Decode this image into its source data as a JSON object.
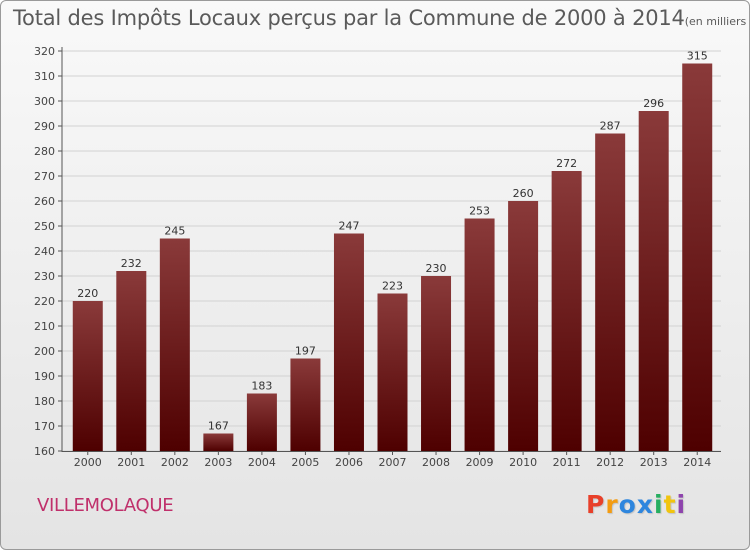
{
  "header": {
    "title": "Total des Impôts Locaux perçus par la Commune de 2000 à 2014",
    "subtitle": "(en milliers d'€)"
  },
  "commune_name": "VILLEMOLAQUE",
  "brand": {
    "letters": [
      "P",
      "r",
      "o",
      "x",
      "i",
      "t",
      "i"
    ],
    "colors": [
      "#e8402a",
      "#f39c12",
      "#2e86de",
      "#2e86de",
      "#27ae60",
      "#f1c40f",
      "#8e44ad"
    ]
  },
  "colors": {
    "bar_top": "#8a3a3a",
    "bar_bottom": "#4e0000",
    "title": "#5a5a5a",
    "commune": "#c0306b"
  },
  "chart_data": {
    "type": "bar",
    "title": "Total des Impôts Locaux perçus par la Commune de 2000 à 2014",
    "xlabel": "",
    "ylabel": "en milliers d'€",
    "categories": [
      "2000",
      "2001",
      "2002",
      "2003",
      "2004",
      "2005",
      "2006",
      "2007",
      "2008",
      "2009",
      "2010",
      "2011",
      "2012",
      "2013",
      "2014"
    ],
    "values": [
      220,
      232,
      245,
      167,
      183,
      197,
      247,
      223,
      230,
      253,
      260,
      272,
      287,
      296,
      315
    ],
    "ylim": [
      160,
      320
    ],
    "yticks": [
      160,
      170,
      180,
      190,
      200,
      210,
      220,
      230,
      240,
      250,
      260,
      270,
      280,
      290,
      300,
      310,
      320
    ],
    "grid": "horizontal"
  }
}
